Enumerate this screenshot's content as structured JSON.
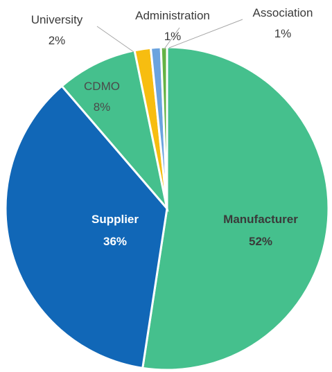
{
  "chart_data": {
    "type": "pie",
    "title": "",
    "slices": [
      {
        "label": "Manufacturer",
        "value": 52,
        "value_label": "52%",
        "color": "#45C08D",
        "text_color": "#3a3a3a",
        "bold": true
      },
      {
        "label": "Supplier",
        "value": 36,
        "value_label": "36%",
        "color": "#1167B7",
        "text_color": "#ffffff",
        "bold": true
      },
      {
        "label": "CDMO",
        "value": 8,
        "value_label": "8%",
        "color": "#45C08D",
        "text_color": "#4a4a4a",
        "bold": false
      },
      {
        "label": "University",
        "value": 1.6,
        "value_label": "2%",
        "color": "#F7BD10",
        "text_color": "#3a3a3a",
        "bold": false
      },
      {
        "label": "Administration",
        "value": 1.0,
        "value_label": "1%",
        "color": "#6BA3DE",
        "text_color": "#3a3a3a",
        "bold": false
      },
      {
        "label": "Association",
        "value": 0.6,
        "value_label": "1%",
        "color": "#64B344",
        "text_color": "#3a3a3a",
        "bold": false
      }
    ]
  }
}
